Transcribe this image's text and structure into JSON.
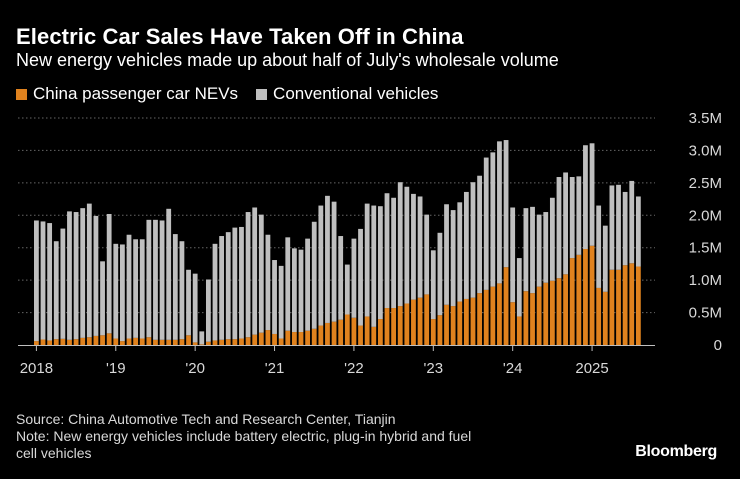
{
  "header": {
    "title": "Electric Car Sales Have Taken Off in China",
    "subtitle": "New energy vehicles made up about half of July's wholesale volume"
  },
  "footer": {
    "source": "Source: China Automotive Tech and Research Center, Tianjin",
    "note_line1": "Note: New energy vehicles include battery electric, plug-in hybrid and fuel",
    "note_line2": "cell vehicles",
    "logo": "Bloomberg"
  },
  "chart_data": {
    "type": "bar",
    "stacked": true,
    "title": "Electric Car Sales Have Taken Off in China",
    "subtitle": "New energy vehicles made up about half of July's wholesale volume",
    "xlabel": "",
    "ylabel": "",
    "ylim": [
      0,
      3500000
    ],
    "y_ticks": [
      0,
      500000,
      1000000,
      1500000,
      2000000,
      2500000,
      3000000,
      3500000
    ],
    "y_tick_labels": [
      "0",
      "0.5M",
      "1.0M",
      "1.5M",
      "2.0M",
      "2.5M",
      "3.0M",
      "3.5M"
    ],
    "x_tick_labels": [
      {
        "label": "2018",
        "month_index": 0
      },
      {
        "label": "'19",
        "month_index": 12
      },
      {
        "label": "'20",
        "month_index": 24
      },
      {
        "label": "'21",
        "month_index": 36
      },
      {
        "label": "'22",
        "month_index": 48
      },
      {
        "label": "'23",
        "month_index": 60
      },
      {
        "label": "'24",
        "month_index": 72
      },
      {
        "label": "2025",
        "month_index": 84
      }
    ],
    "grid": true,
    "legend_position": "top-left",
    "colors": {
      "nev": "#E0821E",
      "conventional": "#BFBFBF",
      "grid": "#666666",
      "axis": "#BFBFBF"
    },
    "series": [
      {
        "name": "China passenger car NEVs",
        "values": [
          60000,
          85000,
          70000,
          90000,
          95000,
          80000,
          90000,
          110000,
          120000,
          140000,
          150000,
          180000,
          100000,
          60000,
          100000,
          110000,
          100000,
          120000,
          80000,
          80000,
          80000,
          80000,
          90000,
          150000,
          40000,
          10000,
          50000,
          70000,
          80000,
          90000,
          90000,
          100000,
          120000,
          160000,
          190000,
          230000,
          170000,
          100000,
          220000,
          200000,
          200000,
          220000,
          250000,
          300000,
          340000,
          360000,
          390000,
          470000,
          420000,
          300000,
          440000,
          280000,
          400000,
          570000,
          570000,
          600000,
          640000,
          700000,
          730000,
          780000,
          400000,
          460000,
          620000,
          600000,
          670000,
          710000,
          730000,
          800000,
          850000,
          900000,
          950000,
          1200000,
          660000,
          440000,
          830000,
          800000,
          900000,
          960000,
          990000,
          1030000,
          1090000,
          1340000,
          1390000,
          1480000,
          1530000,
          880000,
          820000,
          1160000,
          1160000,
          1230000,
          1260000,
          1210000
        ]
      },
      {
        "name": "Conventional vehicles",
        "values": [
          1860000,
          1820000,
          1810000,
          1510000,
          1700000,
          1980000,
          1960000,
          2000000,
          2060000,
          1850000,
          1140000,
          1840000,
          1460000,
          1490000,
          1600000,
          1520000,
          1530000,
          1810000,
          1850000,
          1840000,
          2020000,
          1630000,
          1510000,
          1010000,
          1060000,
          200000,
          960000,
          1490000,
          1600000,
          1650000,
          1720000,
          1720000,
          1930000,
          1960000,
          1820000,
          1470000,
          1140000,
          1120000,
          1440000,
          1290000,
          1270000,
          1420000,
          1650000,
          1850000,
          1960000,
          1850000,
          1290000,
          770000,
          1220000,
          1490000,
          1740000,
          1870000,
          1740000,
          1770000,
          1700000,
          1910000,
          1800000,
          1630000,
          1560000,
          1230000,
          1060000,
          1270000,
          1550000,
          1480000,
          1530000,
          1650000,
          1780000,
          1810000,
          2040000,
          2070000,
          2190000,
          1960000,
          1460000,
          900000,
          1280000,
          1330000,
          1110000,
          1090000,
          1280000,
          1560000,
          1570000,
          1250000,
          1210000,
          1600000,
          1580000,
          1270000,
          1020000,
          1300000,
          1310000,
          1130000,
          1270000,
          1080000
        ]
      }
    ]
  }
}
